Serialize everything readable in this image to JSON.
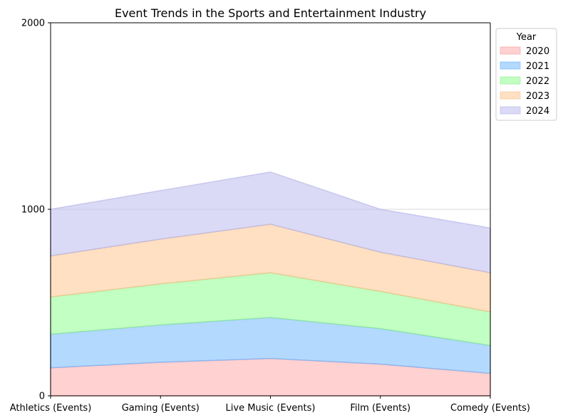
{
  "chart_data": {
    "type": "area",
    "stacked": true,
    "title": "Event Trends in the Sports and Entertainment Industry",
    "xlabel": "",
    "ylabel": "",
    "categories": [
      "Athletics (Events)",
      "Gaming (Events)",
      "Live Music (Events)",
      "Film (Events)",
      "Comedy (Events)"
    ],
    "ylim": [
      0,
      2000
    ],
    "yticks": [
      0,
      1000,
      2000
    ],
    "grid": "horizontal",
    "legend": {
      "title": "Year",
      "placement": "outside-top-right"
    },
    "series": [
      {
        "name": "2020",
        "values": [
          150,
          180,
          200,
          170,
          120
        ],
        "color": "#ffb3b3",
        "edge": "#ff9999"
      },
      {
        "name": "2021",
        "values": [
          180,
          200,
          220,
          190,
          150
        ],
        "color": "#80bfff",
        "edge": "#66b3ff"
      },
      {
        "name": "2022",
        "values": [
          200,
          220,
          240,
          200,
          180
        ],
        "color": "#99ff99",
        "edge": "#8fe88f"
      },
      {
        "name": "2023",
        "values": [
          220,
          240,
          260,
          210,
          210
        ],
        "color": "#ffcc99",
        "edge": "#f5c08a"
      },
      {
        "name": "2024",
        "values": [
          250,
          260,
          280,
          230,
          240
        ],
        "color": "#c2c2f0",
        "edge": "#b0b0e6"
      }
    ]
  }
}
